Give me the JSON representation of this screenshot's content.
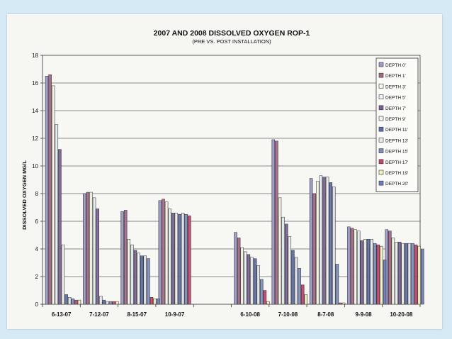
{
  "chart_data": {
    "type": "bar",
    "title": "2007 AND 2008 DISSOLVED OXYGEN ROP-1",
    "subtitle": "(PRE VS. POST INSTALLATION)",
    "xlabel": "",
    "ylabel": "DISSOLVED OXYGEN MG/L",
    "ylim": [
      0,
      18
    ],
    "yticks": [
      "0",
      "2",
      "4",
      "6",
      "8",
      "10",
      "12",
      "14",
      "16",
      "18"
    ],
    "grid": true,
    "legend_position": "top-right",
    "categories": [
      "6-13-07",
      "7-12-07",
      "8-15-07",
      "10-9-07",
      "",
      "6-10-08",
      "7-10-08",
      "8-7-08",
      "9-9-08",
      "10-20-08"
    ],
    "series": [
      {
        "name": "DEPTH 0'",
        "color": "#9c9cc9",
        "values": [
          16.5,
          8.0,
          6.7,
          7.5,
          null,
          5.2,
          11.9,
          9.1,
          5.6,
          5.4
        ]
      },
      {
        "name": "DEPTH 1'",
        "color": "#a6688a",
        "values": [
          16.6,
          8.1,
          6.8,
          7.6,
          null,
          4.8,
          11.8,
          8.0,
          5.5,
          5.3
        ]
      },
      {
        "name": "DEPTH 3'",
        "color": "#fbfbe8",
        "values": [
          15.8,
          8.1,
          4.7,
          7.4,
          null,
          4.1,
          7.7,
          8.9,
          5.4,
          4.8
        ]
      },
      {
        "name": "DEPTH 5'",
        "color": "#e9f3f8",
        "values": [
          13.0,
          7.7,
          4.3,
          6.9,
          null,
          3.8,
          6.3,
          9.3,
          5.3,
          4.5
        ]
      },
      {
        "name": "DEPTH 7'",
        "color": "#7a6393",
        "values": [
          11.2,
          6.9,
          3.9,
          6.6,
          null,
          3.6,
          5.8,
          9.2,
          4.6,
          4.5
        ]
      },
      {
        "name": "DEPTH 9'",
        "color": "#f3f3f3",
        "values": [
          4.3,
          0.6,
          3.7,
          6.6,
          null,
          3.4,
          4.9,
          9.2,
          4.7,
          4.4
        ]
      },
      {
        "name": "DEPTH 11'",
        "color": "#5b6fa8",
        "values": [
          0.7,
          0.3,
          3.5,
          6.5,
          null,
          3.3,
          3.9,
          8.8,
          4.7,
          4.4
        ]
      },
      {
        "name": "DEPTH 13'",
        "color": "#e7e9f0",
        "values": [
          0.5,
          0.2,
          3.5,
          6.6,
          null,
          2.8,
          3.4,
          8.5,
          4.7,
          4.4
        ]
      },
      {
        "name": "DEPTH 15'",
        "color": "#7f8fc1",
        "values": [
          0.4,
          0.2,
          3.3,
          6.5,
          null,
          1.8,
          2.6,
          2.9,
          4.4,
          4.4
        ]
      },
      {
        "name": "DEPTH 17'",
        "color": "#c8426c",
        "values": [
          0.3,
          0.2,
          0.5,
          6.4,
          null,
          1.0,
          1.4,
          0.1,
          4.3,
          4.3
        ]
      },
      {
        "name": "DEPTH 19'",
        "color": "#f7f2c2",
        "values": [
          0.3,
          0.2,
          0.4,
          null,
          null,
          0.2,
          0.7,
          0.1,
          4.2,
          4.2
        ]
      },
      {
        "name": "DEPTH 20'",
        "color": "#6b7dbb",
        "values": [
          null,
          null,
          0.4,
          null,
          null,
          null,
          null,
          null,
          3.2,
          4.0
        ]
      }
    ]
  }
}
